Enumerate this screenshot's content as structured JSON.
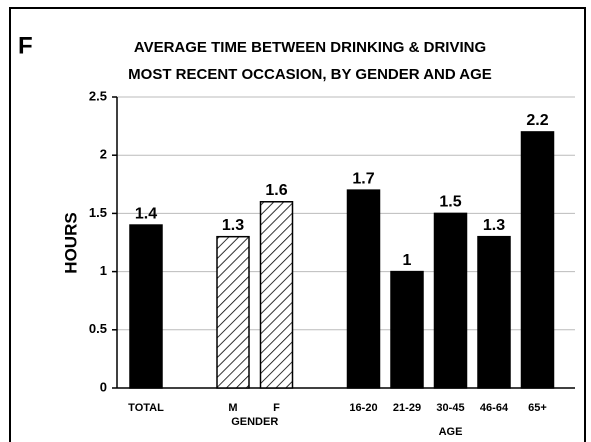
{
  "chart_data": {
    "type": "bar",
    "panel_label": "F",
    "title": "AVERAGE TIME BETWEEN DRINKING & DRIVING",
    "subtitle": "MOST RECENT OCCASION, BY GENDER AND AGE",
    "y_label": "HOURS",
    "categories": [
      "TOTAL",
      "M",
      "F",
      "16-20",
      "21-29",
      "30-45",
      "46-64",
      "65+"
    ],
    "values": [
      1.4,
      1.3,
      1.6,
      1.7,
      1,
      1.5,
      1.3,
      2.2
    ],
    "bar_styles": [
      "solid",
      "hatched",
      "hatched",
      "solid",
      "solid",
      "solid",
      "solid",
      "solid"
    ],
    "color": "#000000",
    "groups": [
      {
        "label": "GENDER",
        "start": 1,
        "end": 2
      },
      {
        "label": "AGE",
        "start": 3,
        "end": 7
      }
    ],
    "ylim": [
      0,
      2.5
    ],
    "yticks": [
      0,
      0.5,
      1,
      1.5,
      2,
      2.5
    ],
    "grid": true
  }
}
